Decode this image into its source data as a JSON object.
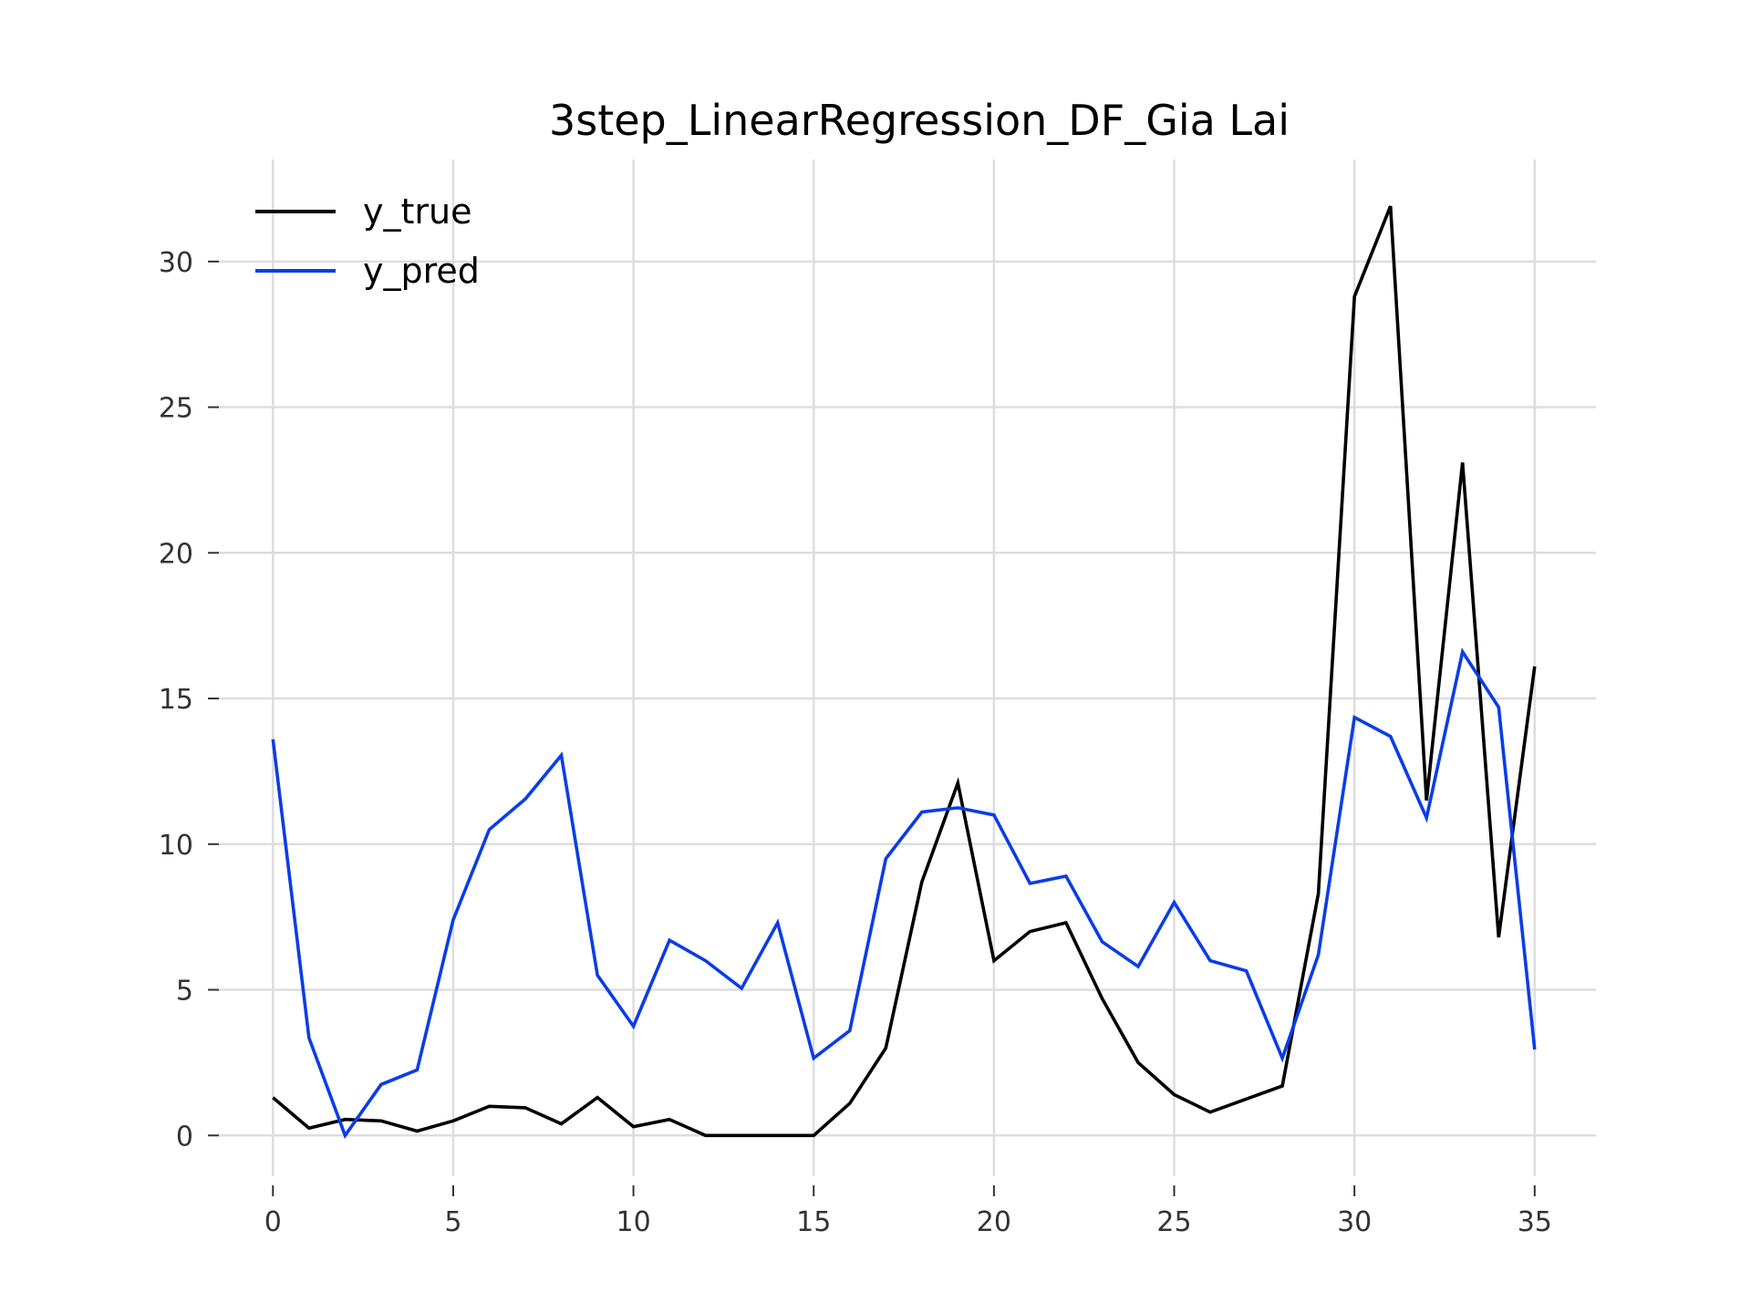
{
  "chart_data": {
    "type": "line",
    "title": "3step_LinearRegression_DF_Gia Lai",
    "xlabel": "",
    "ylabel": "",
    "xlim": [
      -1.5,
      36.7
    ],
    "ylim": [
      -1.4,
      33.5
    ],
    "xticks": [
      0,
      5,
      10,
      15,
      20,
      25,
      30,
      35
    ],
    "yticks": [
      0,
      5,
      10,
      15,
      20,
      25,
      30
    ],
    "grid": true,
    "legend_position": "top-left",
    "x": [
      0,
      1,
      2,
      3,
      4,
      5,
      6,
      7,
      8,
      9,
      10,
      11,
      12,
      13,
      14,
      15,
      16,
      17,
      18,
      19,
      20,
      21,
      22,
      23,
      24,
      25,
      26,
      27,
      28,
      29,
      30,
      31,
      32,
      33,
      34,
      35
    ],
    "series": [
      {
        "name": "y_true",
        "color": "#000000",
        "values": [
          1.3,
          0.25,
          0.55,
          0.5,
          0.15,
          0.5,
          1.0,
          0.95,
          0.4,
          1.3,
          0.3,
          0.55,
          0.0,
          0.0,
          0.0,
          0.0,
          1.1,
          3.0,
          8.7,
          12.1,
          6.0,
          7.0,
          7.3,
          4.7,
          2.5,
          1.4,
          0.8,
          1.25,
          1.7,
          8.3,
          28.8,
          31.9,
          11.5,
          23.1,
          6.8,
          16.1
        ]
      },
      {
        "name": "y_pred",
        "color": "#0a3de6",
        "values": [
          13.6,
          3.35,
          0.0,
          1.75,
          2.25,
          7.4,
          10.5,
          11.55,
          13.05,
          5.5,
          3.75,
          6.7,
          6.0,
          5.05,
          7.3,
          2.65,
          3.6,
          9.5,
          11.1,
          11.25,
          11.0,
          8.65,
          8.9,
          6.65,
          5.8,
          8.0,
          6.0,
          5.65,
          2.65,
          6.2,
          14.35,
          13.7,
          10.9,
          16.6,
          14.7,
          2.95
        ]
      }
    ]
  }
}
